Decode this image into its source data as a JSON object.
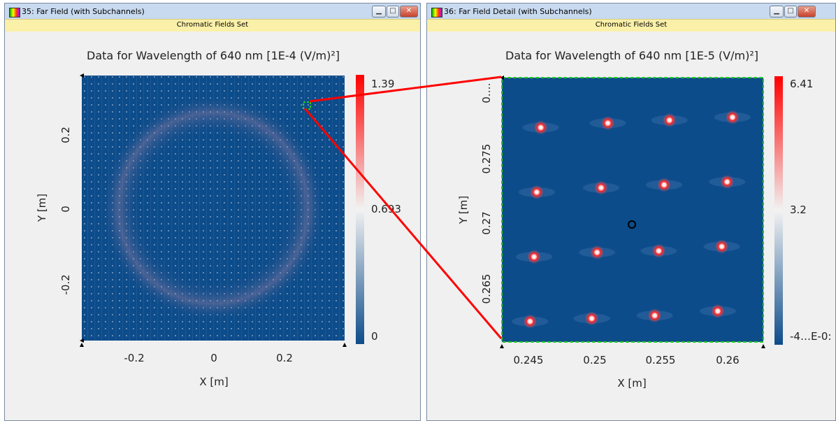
{
  "colors": {
    "field_blue": "#0d4c8a",
    "cb_low": "#0d4c8a",
    "cb_mid": "#f2f2f2",
    "cb_high": "#ff0000",
    "subtitle_bg": "#fbf0a8",
    "link_line": "#ff0000",
    "zoom_box": "#22cc22"
  },
  "left_window": {
    "title": "35: Far Field (with Subchannels)",
    "subtitle": "Chromatic Fields Set",
    "plot_title": "Data for Wavelength of 640 nm  [1E-4 (V/m)²]",
    "x_label": "X [m]",
    "y_label": "Y [m]",
    "x_ticks": [
      "-0.2",
      "0",
      "0.2"
    ],
    "y_ticks": [
      "0.2",
      "0",
      "-0.2"
    ],
    "colorbar_labels": [
      "1.39",
      "0.693",
      "0"
    ],
    "icons": [
      "app-icon",
      "minimize-icon",
      "maximize-icon",
      "close-icon"
    ]
  },
  "right_window": {
    "title": "36: Far Field Detail (with Subchannels)",
    "subtitle": "Chromatic Fields Set",
    "plot_title": "Data for Wavelength of 640 nm  [1E-5 (V/m)²]",
    "x_label": "X [m]",
    "y_label": "Y [m]",
    "x_ticks": [
      "0.245",
      "0.25",
      "0.255",
      "0.26"
    ],
    "y_ticks": [
      "0.…",
      "0.275",
      "0.27",
      "0.265"
    ],
    "colorbar_labels": [
      "6.41",
      "3.2",
      "-4…E-0:"
    ],
    "icons": [
      "app-icon",
      "minimize-icon",
      "maximize-icon",
      "close-icon"
    ]
  },
  "spot_grid": {
    "x_range": [
      0.243,
      0.2625
    ],
    "y_range": [
      0.262,
      0.28
    ],
    "rows": [
      [
        [
          0.2459,
          0.2766
        ],
        [
          0.2509,
          0.2769
        ],
        [
          0.2555,
          0.2771
        ],
        [
          0.2602,
          0.2773
        ]
      ],
      [
        [
          0.2456,
          0.2722
        ],
        [
          0.2504,
          0.2725
        ],
        [
          0.2551,
          0.2727
        ],
        [
          0.2598,
          0.2729
        ]
      ],
      [
        [
          0.2454,
          0.2678
        ],
        [
          0.2501,
          0.2681
        ],
        [
          0.2547,
          0.2682
        ],
        [
          0.2594,
          0.2685
        ]
      ],
      [
        [
          0.2451,
          0.2634
        ],
        [
          0.2497,
          0.2636
        ],
        [
          0.2544,
          0.2638
        ],
        [
          0.2591,
          0.2641
        ]
      ]
    ],
    "marker": [
      0.2527,
      0.27
    ]
  }
}
